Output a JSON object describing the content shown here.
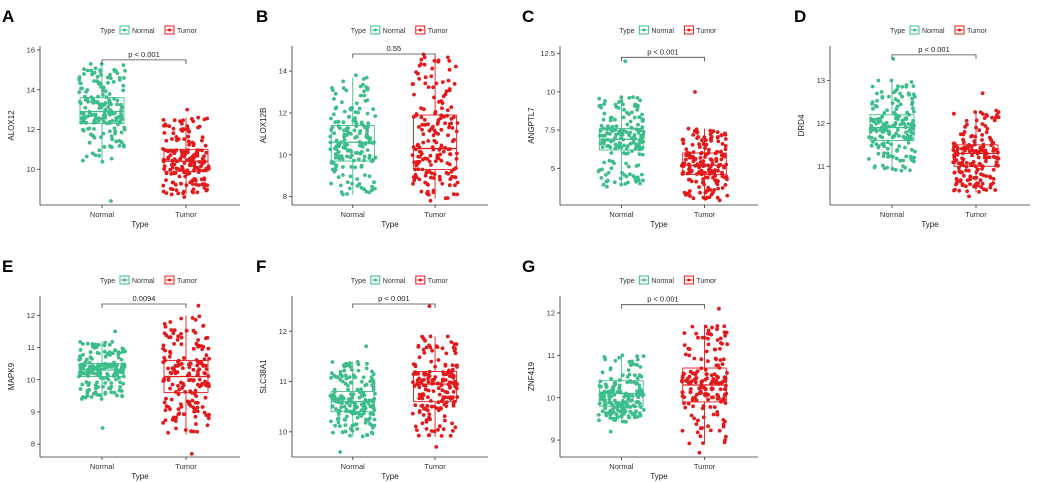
{
  "figure": {
    "legend_title": "Type",
    "groups": [
      "Normal",
      "Tumor"
    ],
    "colors": {
      "Normal": "#3dbd8a",
      "Tumor": "#e31a1c"
    }
  },
  "chart_data": [
    {
      "panel": "A",
      "type": "box",
      "ylabel": "ALOX12",
      "xlabel": "Type",
      "categories": [
        "Normal",
        "Tumor"
      ],
      "ylim": [
        8.2,
        16.2
      ],
      "yticks": [
        10,
        12,
        14,
        16
      ],
      "pvalue": "p < 0.001",
      "boxes": [
        {
          "group": "Normal",
          "min": 10.3,
          "q1": 12.3,
          "median": 12.9,
          "q3": 13.6,
          "max": 15.3,
          "lo": 8.4,
          "hi": 15.3
        },
        {
          "group": "Tumor",
          "min": 8.7,
          "q1": 9.9,
          "median": 10.4,
          "q3": 11.0,
          "max": 12.6,
          "lo": 8.6,
          "hi": 13.0
        }
      ]
    },
    {
      "panel": "B",
      "type": "box",
      "ylabel": "ALOX12B",
      "xlabel": "Type",
      "categories": [
        "Normal",
        "Tumor"
      ],
      "ylim": [
        7.6,
        15.2
      ],
      "yticks": [
        8,
        10,
        12,
        14
      ],
      "pvalue": "0.55",
      "boxes": [
        {
          "group": "Normal",
          "min": 8.1,
          "q1": 9.7,
          "median": 10.6,
          "q3": 11.4,
          "max": 13.7,
          "lo": 8.1,
          "hi": 13.8
        },
        {
          "group": "Tumor",
          "min": 7.9,
          "q1": 9.3,
          "median": 10.3,
          "q3": 11.9,
          "max": 14.7,
          "lo": 7.8,
          "hi": 14.8
        }
      ]
    },
    {
      "panel": "C",
      "type": "box",
      "ylabel": "ANGPTL7",
      "xlabel": "Type",
      "categories": [
        "Normal",
        "Tumor"
      ],
      "ylim": [
        2.6,
        13.0
      ],
      "yticks": [
        5.0,
        7.5,
        10.0,
        12.5
      ],
      "pvalue": "p < 0.001",
      "boxes": [
        {
          "group": "Normal",
          "min": 3.9,
          "q1": 6.2,
          "median": 6.9,
          "q3": 7.6,
          "max": 9.7,
          "lo": 3.8,
          "hi": 12.0
        },
        {
          "group": "Tumor",
          "min": 3.0,
          "q1": 4.6,
          "median": 5.2,
          "q3": 6.0,
          "max": 7.6,
          "lo": 2.9,
          "hi": 10.0
        }
      ]
    },
    {
      "panel": "D",
      "type": "box",
      "ylabel": "DRD4",
      "xlabel": "Type",
      "categories": [
        "Normal",
        "Tumor"
      ],
      "ylim": [
        10.1,
        13.8
      ],
      "yticks": [
        11,
        12,
        13
      ],
      "pvalue": "p < 0.001",
      "boxes": [
        {
          "group": "Normal",
          "min": 10.9,
          "q1": 11.6,
          "median": 11.9,
          "q3": 12.2,
          "max": 13.0,
          "lo": 10.9,
          "hi": 13.5
        },
        {
          "group": "Tumor",
          "min": 10.4,
          "q1": 11.0,
          "median": 11.3,
          "q3": 11.5,
          "max": 12.3,
          "lo": 10.3,
          "hi": 12.7
        }
      ]
    },
    {
      "panel": "E",
      "type": "box",
      "ylabel": "MAPK9",
      "xlabel": "Type",
      "categories": [
        "Normal",
        "Tumor"
      ],
      "ylim": [
        7.6,
        12.6
      ],
      "yticks": [
        8,
        9,
        10,
        11,
        12
      ],
      "pvalue": "0.0094",
      "boxes": [
        {
          "group": "Normal",
          "min": 9.4,
          "q1": 10.1,
          "median": 10.3,
          "q3": 10.5,
          "max": 11.2,
          "lo": 8.5,
          "hi": 11.5
        },
        {
          "group": "Tumor",
          "min": 8.3,
          "q1": 9.6,
          "median": 10.1,
          "q3": 10.6,
          "max": 12.0,
          "lo": 7.7,
          "hi": 12.3
        }
      ]
    },
    {
      "panel": "F",
      "type": "box",
      "ylabel": "SLC38A1",
      "xlabel": "Type",
      "categories": [
        "Normal",
        "Tumor"
      ],
      "ylim": [
        9.5,
        12.7
      ],
      "yticks": [
        10,
        11,
        12
      ],
      "pvalue": "p < 0.001",
      "boxes": [
        {
          "group": "Normal",
          "min": 9.9,
          "q1": 10.4,
          "median": 10.6,
          "q3": 10.8,
          "max": 11.4,
          "lo": 9.6,
          "hi": 11.7
        },
        {
          "group": "Tumor",
          "min": 9.9,
          "q1": 10.6,
          "median": 10.95,
          "q3": 11.2,
          "max": 11.9,
          "lo": 9.7,
          "hi": 12.5
        }
      ]
    },
    {
      "panel": "G",
      "type": "box",
      "ylabel": "ZNF419",
      "xlabel": "Type",
      "categories": [
        "Normal",
        "Tumor"
      ],
      "ylim": [
        8.6,
        12.4
      ],
      "yticks": [
        9,
        10,
        11,
        12
      ],
      "pvalue": "p < 0.001",
      "boxes": [
        {
          "group": "Normal",
          "min": 9.4,
          "q1": 9.8,
          "median": 10.1,
          "q3": 10.4,
          "max": 11.0,
          "lo": 9.2,
          "hi": 11.0
        },
        {
          "group": "Tumor",
          "min": 8.9,
          "q1": 9.9,
          "median": 10.3,
          "q3": 10.7,
          "max": 11.7,
          "lo": 8.7,
          "hi": 12.1
        }
      ]
    }
  ]
}
